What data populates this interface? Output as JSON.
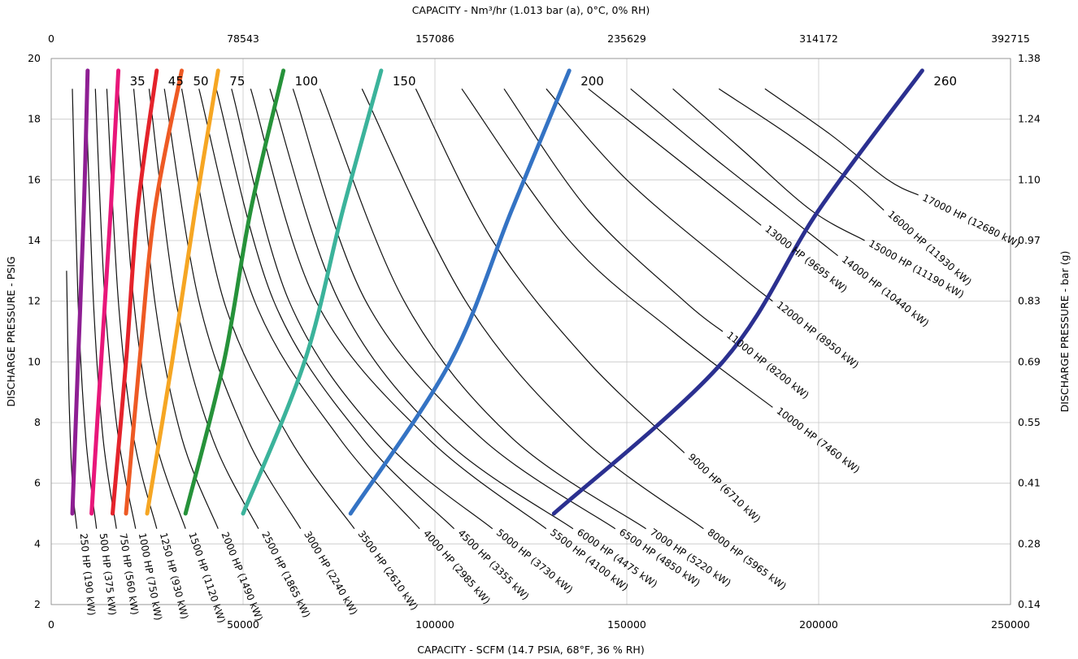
{
  "chart_data": {
    "type": "line",
    "x_axis": {
      "label": "CAPACITY - SCFM (14.7 PSIA, 68°F, 36 % RH)",
      "range": [
        0,
        250000
      ],
      "ticks": [
        "0",
        "50000",
        "100000",
        "150000",
        "200000",
        "250000"
      ],
      "tick_values": [
        0,
        50000,
        100000,
        150000,
        200000,
        250000
      ]
    },
    "x2_axis": {
      "label": "CAPACITY - Nm³/hr (1.013 bar (a), 0°C, 0% RH)",
      "ticks": [
        "0",
        "78543",
        "157086",
        "235629",
        "314172",
        "392715"
      ]
    },
    "y_axis": {
      "label": "DISCHARGE PRESSURE - PSIG",
      "range": [
        2,
        20
      ],
      "ticks": [
        "2",
        "4",
        "6",
        "8",
        "10",
        "12",
        "14",
        "16",
        "18",
        "20"
      ],
      "tick_values": [
        2,
        4,
        6,
        8,
        10,
        12,
        14,
        16,
        18,
        20
      ]
    },
    "y2_axis": {
      "label": "DISCHARGE PRESSURE - bar (g)",
      "ticks": [
        "0.14",
        "0.28",
        "0.41",
        "0.55",
        "0.69",
        "0.83",
        "0.97",
        "1.10",
        "1.24",
        "1.38"
      ]
    },
    "grid": true,
    "power_curves": [
      {
        "label": "250 HP (190 kW)",
        "x": [
          4000,
          4600,
          5500,
          6700
        ],
        "y": [
          13.0,
          9.0,
          6.0,
          4.5
        ]
      },
      {
        "label": "500 HP (375 kW)",
        "x": [
          5500,
          7000,
          9000,
          11800
        ],
        "y": [
          19.0,
          12.0,
          7.5,
          4.5
        ]
      },
      {
        "label": "750 HP (560 kW)",
        "x": [
          9000,
          11000,
          13500,
          17000
        ],
        "y": [
          19.0,
          12.0,
          7.5,
          4.5
        ]
      },
      {
        "label": "1000 HP (750 kW)",
        "x": [
          11500,
          14000,
          17500,
          22000
        ],
        "y": [
          19.0,
          12.0,
          7.5,
          4.5
        ]
      },
      {
        "label": "1250 HP (930 kW)",
        "x": [
          14500,
          17500,
          21500,
          27500
        ],
        "y": [
          19.0,
          12.0,
          7.5,
          4.5
        ]
      },
      {
        "label": "1500 HP (1120 kW)",
        "x": [
          17500,
          21500,
          27000,
          35000
        ],
        "y": [
          19.0,
          12.0,
          7.5,
          4.5
        ]
      },
      {
        "label": "2000 HP (1490 kW)",
        "x": [
          21500,
          27000,
          34000,
          43500
        ],
        "y": [
          19.0,
          12.0,
          7.5,
          4.5
        ]
      },
      {
        "label": "2500 HP (1865 kW)",
        "x": [
          25500,
          32500,
          42000,
          54000
        ],
        "y": [
          19.0,
          12.0,
          7.5,
          4.5
        ]
      },
      {
        "label": "3000 HP (2240 kW)",
        "x": [
          29500,
          38500,
          51000,
          65000
        ],
        "y": [
          19.0,
          12.0,
          7.5,
          4.5
        ]
      },
      {
        "label": "3500 HP (2610 kW)",
        "x": [
          34000,
          45000,
          62000,
          79000
        ],
        "y": [
          19.0,
          12.0,
          7.5,
          4.5
        ]
      },
      {
        "label": "4000 HP (2985 kW)",
        "x": [
          38500,
          53000,
          75000,
          96000
        ],
        "y": [
          19.0,
          12.0,
          7.5,
          4.5
        ]
      },
      {
        "label": "4500 HP (3355 kW)",
        "x": [
          43000,
          58000,
          81000,
          105000
        ],
        "y": [
          19.0,
          12.0,
          7.5,
          4.5
        ]
      },
      {
        "label": "5000 HP (3730 kW)",
        "x": [
          47000,
          62000,
          86000,
          115000
        ],
        "y": [
          19.0,
          12.0,
          7.5,
          4.5
        ]
      },
      {
        "label": "5500 HP (4100 kW)",
        "x": [
          52000,
          69000,
          98000,
          129000
        ],
        "y": [
          19.0,
          12.0,
          7.5,
          4.5
        ]
      },
      {
        "label": "6000 HP (4475 kW)",
        "x": [
          57000,
          75000,
          102000,
          136000
        ],
        "y": [
          19.0,
          12.0,
          7.5,
          4.5
        ]
      },
      {
        "label": "6500 HP (4850 kW)",
        "x": [
          63000,
          82000,
          112000,
          147000
        ],
        "y": [
          19.0,
          12.0,
          7.5,
          4.5
        ]
      },
      {
        "label": "7000 HP (5220 kW)",
        "x": [
          70000,
          92000,
          120000,
          155000
        ],
        "y": [
          19.0,
          12.0,
          7.5,
          4.5
        ]
      },
      {
        "label": "8000 HP (5965 kW)",
        "x": [
          81000,
          108000,
          138000,
          170000
        ],
        "y": [
          19.0,
          12.0,
          7.5,
          4.5
        ]
      },
      {
        "label": "9000 HP (6710 kW)",
        "x": [
          95000,
          115000,
          140000,
          165000
        ],
        "y": [
          19.0,
          14.0,
          10.0,
          7.0
        ]
      },
      {
        "label": "10000 HP (7460 kW)",
        "x": [
          107000,
          135000,
          162000,
          188000
        ],
        "y": [
          19.0,
          14.0,
          11.0,
          8.5
        ]
      },
      {
        "label": "11000 HP (8200 kW)",
        "x": [
          118000,
          140000,
          165000,
          175000
        ],
        "y": [
          19.0,
          15.0,
          12.0,
          11.0
        ]
      },
      {
        "label": "12000 HP (8950 kW)",
        "x": [
          129000,
          150000,
          178000,
          188000
        ],
        "y": [
          19.0,
          16.0,
          13.0,
          12.0
        ]
      },
      {
        "label": "13000 HP (9695 kW)",
        "x": [
          140000,
          160000,
          175000,
          185000
        ],
        "y": [
          19.0,
          17.0,
          15.5,
          14.5
        ]
      },
      {
        "label": "14000 HP (10440 kW)",
        "x": [
          151000,
          170000,
          190000,
          205000
        ],
        "y": [
          19.0,
          17.0,
          15.0,
          13.5
        ]
      },
      {
        "label": "15000 HP (11190 kW)",
        "x": [
          162000,
          180000,
          198000,
          212000
        ],
        "y": [
          19.0,
          17.0,
          15.0,
          14.0
        ]
      },
      {
        "label": "16000 HP (11930 kW)",
        "x": [
          174000,
          192000,
          208000,
          217000
        ],
        "y": [
          19.0,
          17.5,
          16.0,
          15.0
        ]
      },
      {
        "label": "17000 HP (12680 kW)",
        "x": [
          186000,
          203000,
          218000,
          226000
        ],
        "y": [
          19.0,
          17.5,
          16.0,
          15.5
        ]
      }
    ],
    "speed_lines": [
      {
        "label": "",
        "color": "#8e1f93",
        "x": [
          5500,
          7000,
          8500,
          9500
        ],
        "y": [
          5,
          10,
          15,
          19.6
        ]
      },
      {
        "label": "35",
        "color": "#e8177a",
        "x": [
          10500,
          13000,
          15500,
          17500
        ],
        "y": [
          5,
          10,
          15,
          19.6
        ]
      },
      {
        "label": "45",
        "color": "#e4232b",
        "x": [
          16000,
          19500,
          22500,
          27500
        ],
        "y": [
          5,
          10,
          15,
          19.6
        ]
      },
      {
        "label": "50",
        "color": "#ee5a24",
        "x": [
          19500,
          23000,
          27000,
          34000
        ],
        "y": [
          5,
          10,
          15,
          19.6
        ]
      },
      {
        "label": "75",
        "color": "#f6a623",
        "x": [
          25000,
          31500,
          37500,
          43500
        ],
        "y": [
          5,
          10,
          15,
          19.6
        ]
      },
      {
        "label": "100",
        "color": "#26923a",
        "x": [
          35000,
          45000,
          52000,
          60500
        ],
        "y": [
          5,
          10,
          15,
          19.6
        ]
      },
      {
        "label": "150",
        "color": "#3bb39b",
        "x": [
          50000,
          66000,
          76000,
          86000
        ],
        "y": [
          5,
          10,
          15,
          19.6
        ]
      },
      {
        "label": "200",
        "color": "#3473c4",
        "x": [
          78000,
          104000,
          120000,
          135000
        ],
        "y": [
          5,
          10,
          15,
          19.6
        ]
      },
      {
        "label": "260",
        "color": "#2b3090",
        "x": [
          131000,
          175000,
          200000,
          227000
        ],
        "y": [
          5,
          10,
          15,
          19.6
        ]
      }
    ]
  }
}
